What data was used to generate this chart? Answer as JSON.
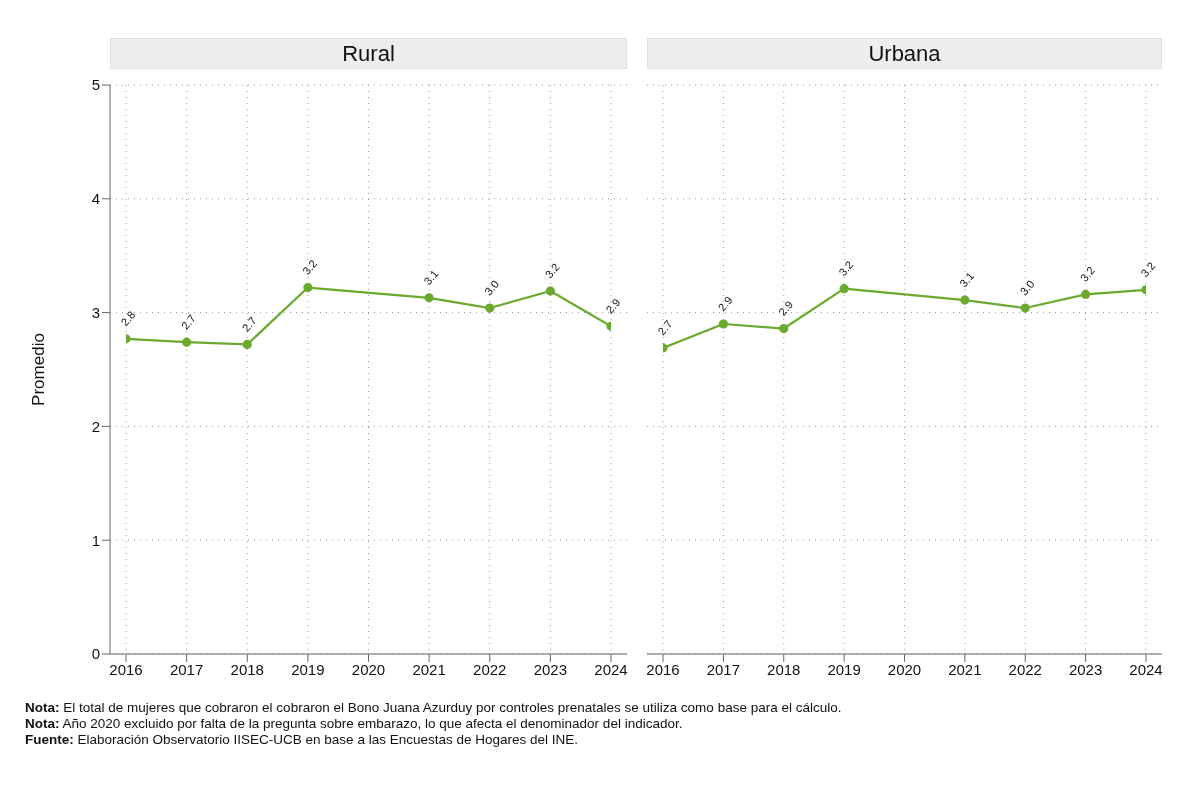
{
  "chart_data": [
    {
      "type": "line",
      "title": "Rural",
      "ylabel": "Promedio",
      "x": [
        2016,
        2017,
        2018,
        2019,
        2021,
        2022,
        2023,
        2024
      ],
      "xlim": [
        2016,
        2024
      ],
      "xticks": [
        2016,
        2017,
        2018,
        2019,
        2020,
        2021,
        2022,
        2023,
        2024
      ],
      "ylim": [
        0,
        5
      ],
      "yticks": [
        0,
        1,
        2,
        3,
        4,
        5
      ],
      "grid": true,
      "marker": "circle",
      "line_style": "solid",
      "series": [
        {
          "color": "#6aaa2e",
          "values": [
            2.77,
            2.74,
            2.72,
            3.22,
            3.13,
            3.04,
            3.19,
            2.88
          ],
          "value_labels": [
            "2.8",
            "2.7",
            "2.7",
            "3.2",
            "3.1",
            "3.0",
            "3.2",
            "2.9"
          ]
        }
      ],
      "annotations": [
        "Nota: El total de mujeres que cobraron el cobraron el Bono Juana Azurduy por controles prenatales se utiliza como base para el cálculo.",
        "Nota: Año 2020 excluido por falta de la pregunta sobre embarazo, lo que afecta el denominador del indicador.",
        "Fuente: Elaboración Observatorio IISEC-UCB en base a las Encuestas de Hogares del INE."
      ]
    },
    {
      "type": "line",
      "title": "Urbana",
      "x": [
        2016,
        2017,
        2018,
        2019,
        2021,
        2022,
        2023,
        2024
      ],
      "xlim": [
        2016,
        2024
      ],
      "xticks": [
        2016,
        2017,
        2018,
        2019,
        2020,
        2021,
        2022,
        2023,
        2024
      ],
      "ylim": [
        0,
        5
      ],
      "yticks": [
        0,
        1,
        2,
        3,
        4,
        5
      ],
      "grid": true,
      "marker": "circle",
      "line_style": "solid",
      "tick_labels": "x",
      "series": [
        {
          "color": "#6aaa2e",
          "values": [
            2.69,
            2.9,
            2.86,
            3.21,
            3.11,
            3.04,
            3.16,
            3.2
          ],
          "value_labels": [
            "2.7",
            "2.9",
            "2.9",
            "3.2",
            "3.1",
            "3.0",
            "3.2",
            "3.2"
          ]
        }
      ]
    }
  ]
}
